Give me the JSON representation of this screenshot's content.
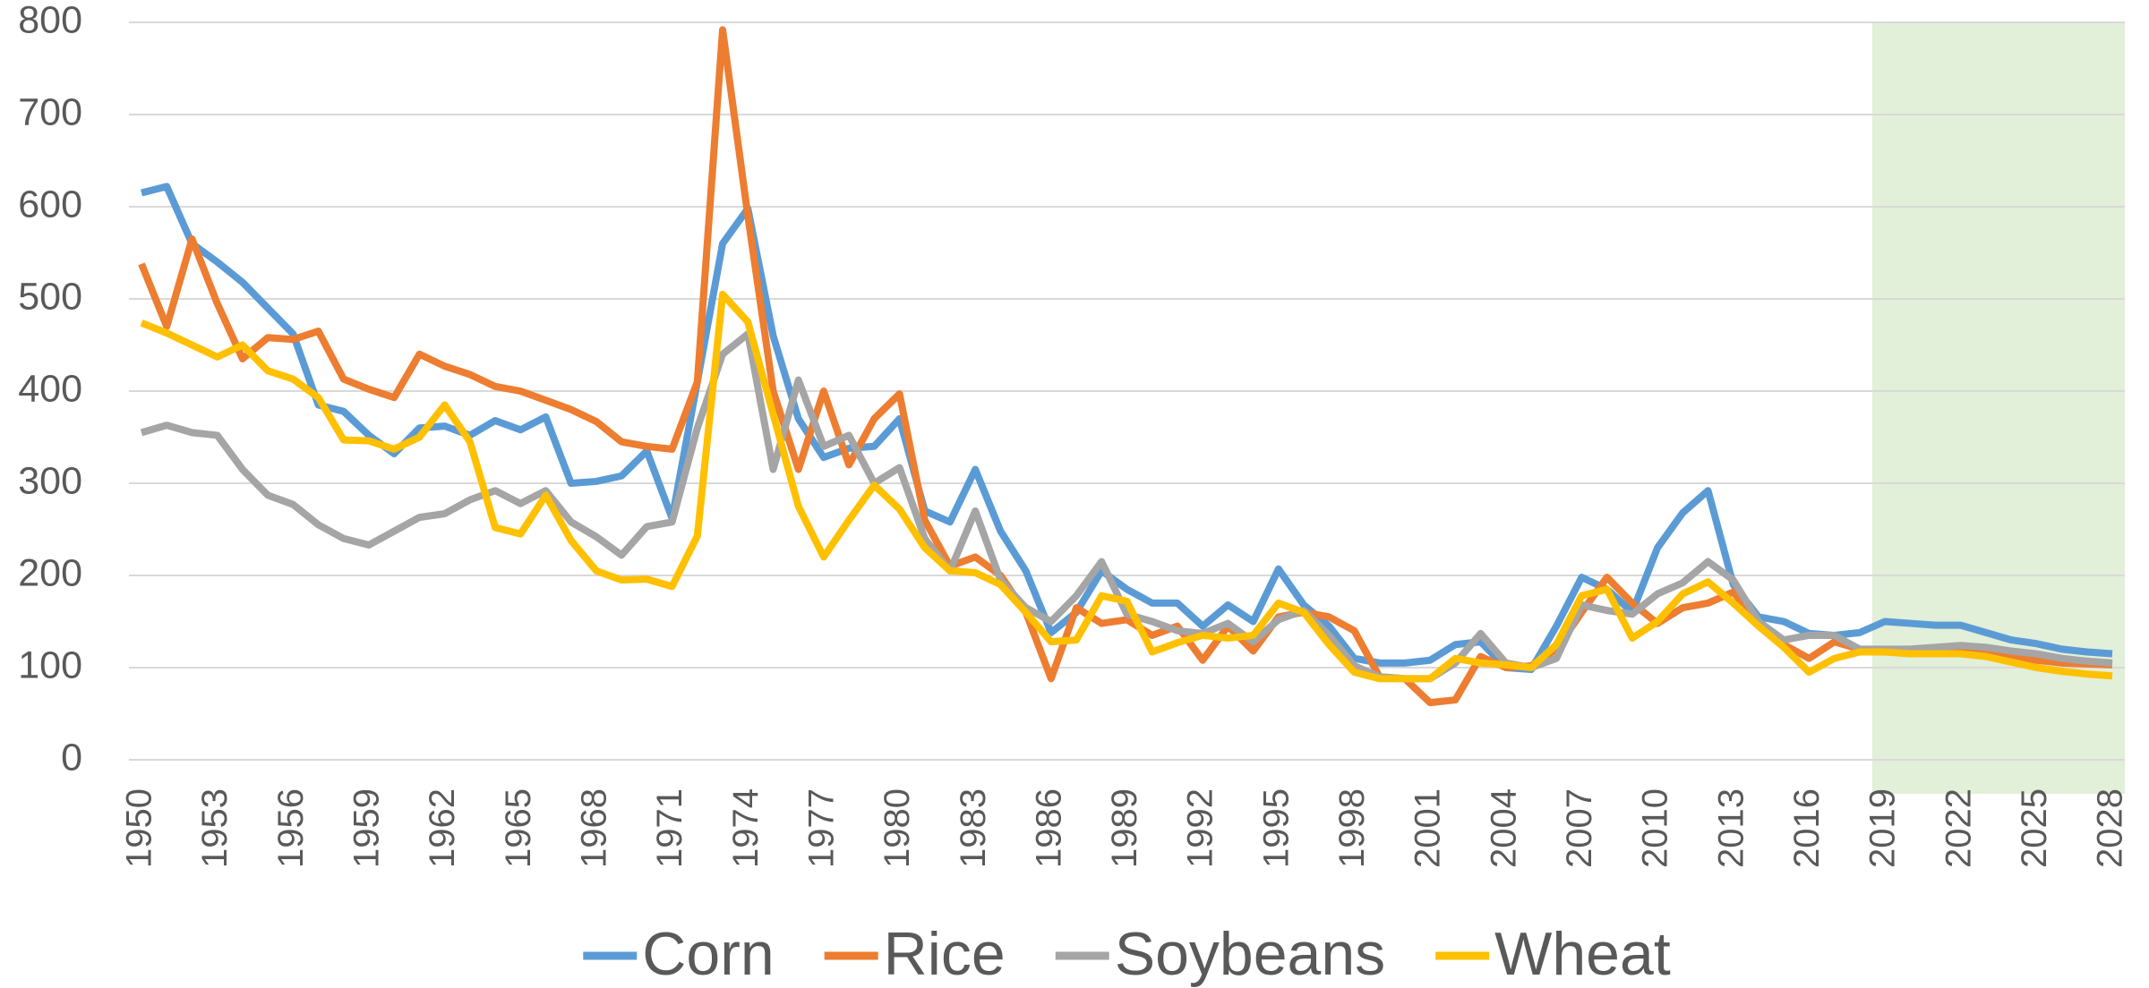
{
  "chart_data": {
    "type": "line",
    "x": [
      1950,
      1951,
      1952,
      1953,
      1954,
      1955,
      1956,
      1957,
      1958,
      1959,
      1960,
      1961,
      1962,
      1963,
      1964,
      1965,
      1966,
      1967,
      1968,
      1969,
      1970,
      1971,
      1972,
      1973,
      1974,
      1975,
      1976,
      1977,
      1978,
      1979,
      1980,
      1981,
      1982,
      1983,
      1984,
      1985,
      1986,
      1987,
      1988,
      1989,
      1990,
      1991,
      1992,
      1993,
      1994,
      1995,
      1996,
      1997,
      1998,
      1999,
      2000,
      2001,
      2002,
      2003,
      2004,
      2005,
      2006,
      2007,
      2008,
      2009,
      2010,
      2011,
      2012,
      2013,
      2014,
      2015,
      2016,
      2017,
      2018,
      2019,
      2020,
      2021,
      2022,
      2023,
      2024,
      2025,
      2026,
      2027,
      2028
    ],
    "series": [
      {
        "name": "Corn",
        "color": "#5b9bd5",
        "values": [
          615,
          622,
          560,
          540,
          518,
          490,
          462,
          385,
          378,
          352,
          332,
          360,
          362,
          352,
          368,
          358,
          372,
          300,
          302,
          308,
          335,
          262,
          410,
          560,
          598,
          460,
          370,
          328,
          338,
          340,
          370,
          270,
          258,
          315,
          248,
          205,
          138,
          160,
          205,
          185,
          170,
          170,
          145,
          168,
          150,
          207,
          168,
          145,
          110,
          105,
          105,
          108,
          125,
          128,
          100,
          98,
          145,
          198,
          185,
          160,
          230,
          268,
          292,
          190,
          155,
          150,
          137,
          135,
          138,
          150,
          148,
          146,
          146,
          138,
          130,
          126,
          120,
          117,
          115
        ]
      },
      {
        "name": "Rice",
        "color": "#ed7d31",
        "values": [
          538,
          470,
          565,
          495,
          435,
          458,
          456,
          465,
          413,
          402,
          393,
          440,
          427,
          418,
          405,
          400,
          390,
          380,
          367,
          345,
          340,
          337,
          410,
          792,
          590,
          400,
          315,
          400,
          320,
          370,
          397,
          260,
          210,
          220,
          200,
          160,
          88,
          165,
          148,
          152,
          135,
          145,
          108,
          145,
          118,
          155,
          160,
          155,
          140,
          90,
          88,
          62,
          65,
          112,
          100,
          102,
          120,
          160,
          198,
          170,
          148,
          165,
          170,
          182,
          148,
          125,
          110,
          128,
          120,
          118,
          118,
          118,
          118,
          115,
          112,
          108,
          105,
          104,
          103
        ]
      },
      {
        "name": "Soybeans",
        "color": "#a5a5a5",
        "values": [
          355,
          363,
          355,
          352,
          315,
          287,
          277,
          255,
          240,
          233,
          248,
          263,
          267,
          282,
          292,
          278,
          292,
          258,
          242,
          222,
          253,
          258,
          360,
          440,
          462,
          315,
          412,
          340,
          352,
          300,
          317,
          240,
          205,
          270,
          195,
          165,
          150,
          178,
          215,
          158,
          150,
          140,
          137,
          148,
          128,
          152,
          162,
          135,
          102,
          90,
          88,
          88,
          105,
          137,
          105,
          100,
          110,
          168,
          162,
          158,
          180,
          192,
          215,
          195,
          150,
          130,
          135,
          135,
          120,
          120,
          120,
          122,
          124,
          122,
          118,
          115,
          110,
          107,
          105
        ]
      },
      {
        "name": "Wheat",
        "color": "#ffc000",
        "values": [
          474,
          463,
          450,
          437,
          450,
          422,
          413,
          393,
          347,
          346,
          337,
          350,
          385,
          345,
          252,
          245,
          287,
          238,
          205,
          195,
          196,
          188,
          243,
          505,
          475,
          375,
          275,
          220,
          260,
          298,
          272,
          230,
          205,
          203,
          190,
          160,
          128,
          130,
          178,
          172,
          117,
          127,
          135,
          132,
          135,
          170,
          160,
          125,
          95,
          88,
          88,
          88,
          110,
          105,
          103,
          100,
          125,
          178,
          185,
          132,
          150,
          180,
          193,
          170,
          145,
          122,
          95,
          110,
          117,
          117,
          115,
          115,
          115,
          112,
          106,
          100,
          96,
          93,
          91
        ]
      }
    ],
    "xlim": [
      1950,
      2028
    ],
    "xticks": [
      1950,
      1953,
      1956,
      1959,
      1962,
      1965,
      1968,
      1971,
      1974,
      1977,
      1980,
      1983,
      1986,
      1989,
      1992,
      1995,
      1998,
      2001,
      2004,
      2007,
      2010,
      2013,
      2016,
      2019,
      2022,
      2025,
      2028
    ],
    "ylim": [
      0,
      800
    ],
    "yticks": [
      0,
      100,
      200,
      300,
      400,
      500,
      600,
      700,
      800
    ],
    "grid": true,
    "legend": "bottom",
    "shaded_region": {
      "x": [
        2018.5,
        2028.5
      ],
      "color": "#e2efd9"
    }
  }
}
